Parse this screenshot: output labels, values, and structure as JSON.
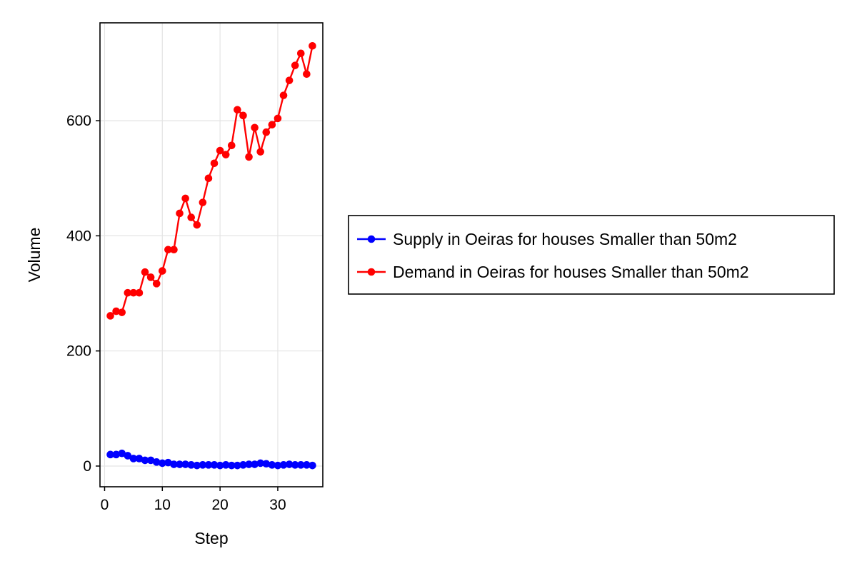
{
  "chart_data": {
    "type": "line",
    "title": "",
    "xlabel": "Step",
    "ylabel": "Volume",
    "xlim": [
      -0.8,
      37.8
    ],
    "ylim": [
      -36,
      770
    ],
    "xticks": [
      0,
      10,
      20,
      30
    ],
    "yticks": [
      0,
      200,
      400,
      600
    ],
    "grid": true,
    "legend_position": "right",
    "x": [
      1,
      2,
      3,
      4,
      5,
      6,
      7,
      8,
      9,
      10,
      11,
      12,
      13,
      14,
      15,
      16,
      17,
      18,
      19,
      20,
      21,
      22,
      23,
      24,
      25,
      26,
      27,
      28,
      29,
      30,
      31,
      32,
      33,
      34,
      35,
      36
    ],
    "series": [
      {
        "name": "Supply in Oeiras for houses Smaller than 50m2",
        "color": "#0000ff",
        "values": [
          20,
          20,
          22,
          18,
          13,
          13,
          10,
          10,
          7,
          5,
          6,
          3,
          3,
          3,
          2,
          1,
          2,
          2,
          2,
          1,
          2,
          1,
          1,
          2,
          3,
          3,
          5,
          4,
          2,
          1,
          2,
          3,
          2,
          2,
          2,
          1
        ]
      },
      {
        "name": "Demand in Oeiras for houses Smaller than 50m2",
        "color": "#ff0000",
        "values": [
          261,
          269,
          267,
          301,
          301,
          301,
          337,
          328,
          317,
          339,
          376,
          376,
          439,
          465,
          432,
          419,
          458,
          500,
          526,
          548,
          541,
          557,
          619,
          609,
          537,
          588,
          546,
          580,
          593,
          604,
          644,
          670,
          696,
          717,
          681,
          730
        ]
      }
    ]
  }
}
